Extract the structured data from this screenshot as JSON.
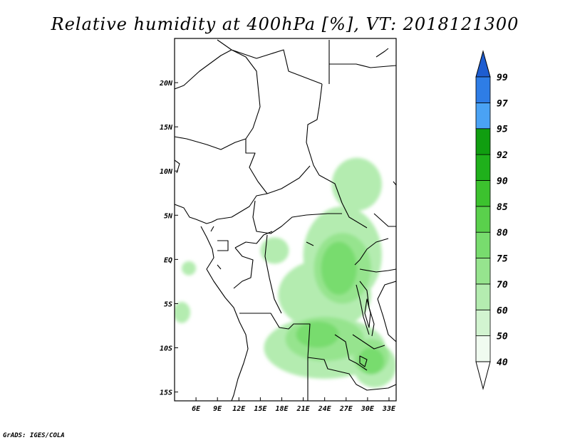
{
  "title": "Relative humidity at 400hPa [%], VT: 2018121300",
  "credit": "GrADS: IGES/COLA",
  "map": {
    "lon_range": [
      3,
      34
    ],
    "lat_range": [
      -16,
      25
    ],
    "lon_ticks": [
      {
        "value": 6,
        "label": "6E"
      },
      {
        "value": 9,
        "label": "9E"
      },
      {
        "value": 12,
        "label": "12E"
      },
      {
        "value": 15,
        "label": "15E"
      },
      {
        "value": 18,
        "label": "18E"
      },
      {
        "value": 21,
        "label": "21E"
      },
      {
        "value": 24,
        "label": "24E"
      },
      {
        "value": 27,
        "label": "27E"
      },
      {
        "value": 30,
        "label": "30E"
      },
      {
        "value": 33,
        "label": "33E"
      }
    ],
    "lat_ticks": [
      {
        "value": 20,
        "label": "20N"
      },
      {
        "value": 15,
        "label": "15N"
      },
      {
        "value": 10,
        "label": "10N"
      },
      {
        "value": 5,
        "label": "5N"
      },
      {
        "value": 0,
        "label": "EQ"
      },
      {
        "value": -5,
        "label": "5S"
      },
      {
        "value": -10,
        "label": "10S"
      },
      {
        "value": -15,
        "label": "15S"
      }
    ],
    "humidity_patches": [
      {
        "lon": 28.5,
        "lat": 8.5,
        "rx": 3.5,
        "ry": 3.0,
        "level": 0
      },
      {
        "lon": 26.5,
        "lat": 0.5,
        "rx": 5.5,
        "ry": 5.5,
        "level": 0
      },
      {
        "lon": 24.0,
        "lat": -4.0,
        "rx": 6.5,
        "ry": 4.0,
        "level": 0
      },
      {
        "lon": 24.0,
        "lat": -10.0,
        "rx": 8.5,
        "ry": 3.5,
        "level": 0
      },
      {
        "lon": 31.0,
        "lat": -12.0,
        "rx": 3.0,
        "ry": 2.5,
        "level": 0
      },
      {
        "lon": 17.0,
        "lat": 1.0,
        "rx": 2.0,
        "ry": 1.5,
        "level": 0
      },
      {
        "lon": 4.0,
        "lat": -6.0,
        "rx": 1.2,
        "ry": 1.2,
        "level": 0
      },
      {
        "lon": 5.0,
        "lat": -1.0,
        "rx": 1.0,
        "ry": 0.8,
        "level": 0
      },
      {
        "lon": 26.5,
        "lat": -1.0,
        "rx": 4.0,
        "ry": 4.0,
        "level": 1
      },
      {
        "lon": 24.0,
        "lat": -9.0,
        "rx": 5.5,
        "ry": 2.5,
        "level": 1
      },
      {
        "lon": 30.5,
        "lat": -11.0,
        "rx": 2.5,
        "ry": 2.0,
        "level": 1
      },
      {
        "lon": 26.0,
        "lat": -1.0,
        "rx": 2.5,
        "ry": 3.0,
        "level": 2
      },
      {
        "lon": 30.5,
        "lat": -11.5,
        "rx": 1.8,
        "ry": 1.5,
        "level": 2
      },
      {
        "lon": 23.0,
        "lat": -8.5,
        "rx": 3.0,
        "ry": 1.5,
        "level": 2
      }
    ]
  },
  "colorbar": {
    "labels": [
      "40",
      "50",
      "60",
      "70",
      "75",
      "80",
      "85",
      "90",
      "92",
      "95",
      "97",
      "99"
    ],
    "colors": [
      "#f0fbf0",
      "#d2f4d0",
      "#b4ecb0",
      "#96e48e",
      "#78dc6e",
      "#5ad04c",
      "#3cc22e",
      "#1fb01b",
      "#109e10",
      "#4aa2f4",
      "#2e7de6",
      "#1e5dd0"
    ]
  },
  "colors": {
    "land_outline": "#000000",
    "background": "#ffffff"
  }
}
